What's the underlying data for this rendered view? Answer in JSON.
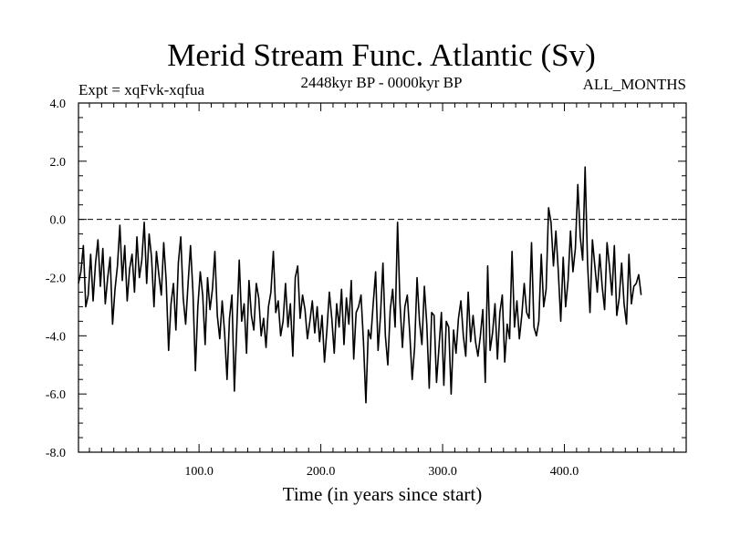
{
  "chart_data": {
    "type": "line",
    "title": "Merid Stream Func. Atlantic (Sv)",
    "expt_label": "Expt = xqFvk-xqfua",
    "period_label": "2448kyr BP - 0000kyr BP",
    "season_label": "ALL_MONTHS",
    "xlabel": "Time (in years since start)",
    "ylabel": "",
    "xlim": [
      1,
      500
    ],
    "ylim": [
      -8,
      4
    ],
    "x_ticks": [
      100,
      200,
      300,
      400
    ],
    "x_tick_labels": [
      "100.0",
      "200.0",
      "300.0",
      "400.0"
    ],
    "y_ticks": [
      4,
      2,
      0,
      -2,
      -4,
      -6,
      -8
    ],
    "y_tick_labels": [
      "4.0",
      "2.0",
      "0.0",
      "-2.0",
      "-4.0",
      "-6.0",
      "-8.0"
    ],
    "reference_line": 0,
    "series": [
      {
        "name": "Merid Stream Func. Atlantic",
        "x_start": 1,
        "x_step": 2,
        "values": [
          -2.2,
          -1.8,
          -0.9,
          -3.0,
          -2.6,
          -1.2,
          -2.8,
          -1.5,
          -0.7,
          -2.3,
          -1.0,
          -2.9,
          -2.0,
          -1.3,
          -3.6,
          -2.4,
          -1.6,
          -0.2,
          -2.1,
          -0.9,
          -2.8,
          -1.7,
          -1.2,
          -2.5,
          -0.6,
          -2.0,
          -1.4,
          -0.1,
          -2.2,
          -0.5,
          -1.3,
          -3.0,
          -1.1,
          -1.9,
          -2.6,
          -0.8,
          -2.1,
          -4.5,
          -2.9,
          -2.2,
          -3.8,
          -1.5,
          -0.6,
          -2.7,
          -3.6,
          -2.2,
          -0.9,
          -2.5,
          -5.2,
          -3.0,
          -1.8,
          -2.6,
          -4.3,
          -2.0,
          -3.1,
          -2.4,
          -1.1,
          -3.3,
          -4.1,
          -2.8,
          -3.9,
          -5.5,
          -3.4,
          -2.6,
          -5.9,
          -3.7,
          -1.4,
          -3.5,
          -2.9,
          -4.6,
          -2.1,
          -3.3,
          -3.8,
          -2.2,
          -2.7,
          -4.0,
          -3.4,
          -4.4,
          -3.0,
          -2.5,
          -1.1,
          -3.2,
          -2.8,
          -4.0,
          -3.5,
          -2.2,
          -3.7,
          -2.9,
          -4.7,
          -2.0,
          -1.6,
          -3.4,
          -2.6,
          -3.1,
          -4.1,
          -3.5,
          -2.8,
          -3.9,
          -3.0,
          -4.2,
          -3.3,
          -4.9,
          -3.8,
          -2.5,
          -3.4,
          -4.6,
          -2.9,
          -3.7,
          -2.4,
          -4.3,
          -2.7,
          -3.6,
          -2.1,
          -4.8,
          -3.2,
          -3.0,
          -2.6,
          -4.2,
          -6.3,
          -3.8,
          -4.1,
          -2.9,
          -1.8,
          -4.5,
          -3.3,
          -1.5,
          -4.0,
          -5.0,
          -3.1,
          -2.4,
          -3.7,
          -0.1,
          -2.9,
          -4.4,
          -3.0,
          -2.6,
          -3.9,
          -5.5,
          -4.4,
          -2.0,
          -3.5,
          -4.3,
          -2.3,
          -3.6,
          -5.8,
          -3.2,
          -3.3,
          -5.6,
          -4.4,
          -3.2,
          -5.7,
          -3.5,
          -3.7,
          -6.0,
          -3.8,
          -4.6,
          -3.4,
          -2.8,
          -4.0,
          -4.7,
          -2.5,
          -4.2,
          -3.3,
          -4.2,
          -4.7,
          -4.0,
          -3.1,
          -5.6,
          -1.6,
          -4.5,
          -3.9,
          -2.9,
          -4.8,
          -3.2,
          -2.6,
          -4.9,
          -3.6,
          -4.1,
          -1.1,
          -3.7,
          -2.8,
          -4.1,
          -3.3,
          -2.2,
          -3.2,
          -3.4,
          -0.8,
          -3.7,
          -4.0,
          -3.5,
          -1.2,
          -3.0,
          -2.4,
          0.4,
          -0.1,
          -1.6,
          -0.4,
          -1.8,
          -3.5,
          -1.3,
          -3.0,
          -2.1,
          -0.4,
          -1.8,
          -1.0,
          1.2,
          -0.6,
          -1.4,
          1.8,
          -1.5,
          -3.2,
          -0.7,
          -1.6,
          -2.5,
          -1.2,
          -2.3,
          -3.1,
          -0.8,
          -1.6,
          -2.6,
          -0.9,
          -3.3,
          -2.7,
          -1.5,
          -2.9,
          -3.6,
          -1.2,
          -2.9,
          -2.3,
          -2.2,
          -1.9,
          -2.6
        ]
      }
    ]
  }
}
